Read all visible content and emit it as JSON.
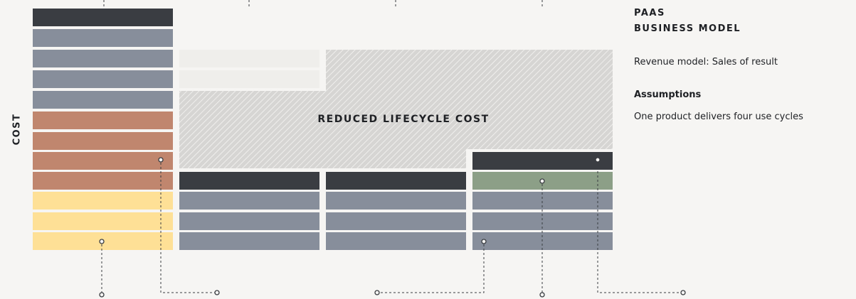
{
  "diagram": {
    "title_lines": [
      "PAAS",
      "BUSINESS MODEL"
    ],
    "revenue_model": "Revenue model: Sales of result",
    "assumptions_heading": "Assumptions",
    "assumptions_text": "One product delivers four use cycles",
    "axis_label": "COST",
    "area_label": "REDUCED LIFECYCLE COST"
  }
}
